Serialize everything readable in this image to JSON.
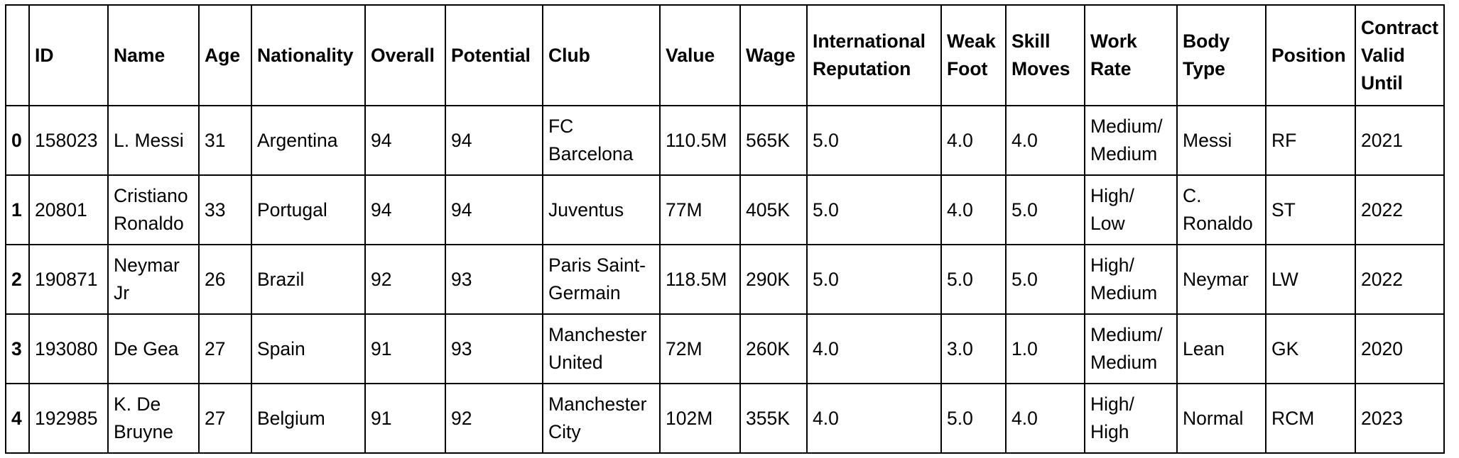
{
  "table": {
    "columns": [
      "",
      "ID",
      "Name",
      "Age",
      "Nationality",
      "Overall",
      "Potential",
      "Club",
      "Value",
      "Wage",
      "International Reputation",
      "Weak Foot",
      "Skill Moves",
      "Work Rate",
      "Body Type",
      "Position",
      "Contract Valid Until"
    ],
    "rows": [
      [
        "0",
        "158023",
        "L. Messi",
        "31",
        "Argentina",
        "94",
        "94",
        "FC Barcelona",
        "110.5M",
        "565K",
        "5.0",
        "4.0",
        "4.0",
        "Medium/ Medium",
        "Messi",
        "RF",
        "2021"
      ],
      [
        "1",
        "20801",
        "Cristiano Ronaldo",
        "33",
        "Portugal",
        "94",
        "94",
        "Juventus",
        "77M",
        "405K",
        "5.0",
        "4.0",
        "5.0",
        "High/ Low",
        "C. Ronaldo",
        "ST",
        "2022"
      ],
      [
        "2",
        "190871",
        "Neymar Jr",
        "26",
        "Brazil",
        "92",
        "93",
        "Paris Saint-Germain",
        "118.5M",
        "290K",
        "5.0",
        "5.0",
        "5.0",
        "High/ Medium",
        "Neymar",
        "LW",
        "2022"
      ],
      [
        "3",
        "193080",
        "De Gea",
        "27",
        "Spain",
        "91",
        "93",
        "Manchester United",
        "72M",
        "260K",
        "4.0",
        "3.0",
        "1.0",
        "Medium/ Medium",
        "Lean",
        "GK",
        "2020"
      ],
      [
        "4",
        "192985",
        "K. De Bruyne",
        "27",
        "Belgium",
        "91",
        "92",
        "Manchester City",
        "102M",
        "355K",
        "4.0",
        "5.0",
        "4.0",
        "High/ High",
        "Normal",
        "RCM",
        "2023"
      ]
    ]
  }
}
